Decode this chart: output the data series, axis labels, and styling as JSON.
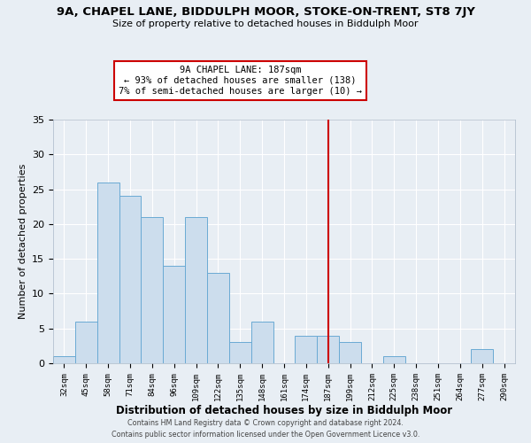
{
  "title": "9A, CHAPEL LANE, BIDDULPH MOOR, STOKE-ON-TRENT, ST8 7JY",
  "subtitle": "Size of property relative to detached houses in Biddulph Moor",
  "xlabel": "Distribution of detached houses by size in Biddulph Moor",
  "ylabel": "Number of detached properties",
  "bin_labels": [
    "32sqm",
    "45sqm",
    "58sqm",
    "71sqm",
    "84sqm",
    "96sqm",
    "109sqm",
    "122sqm",
    "135sqm",
    "148sqm",
    "161sqm",
    "174sqm",
    "187sqm",
    "199sqm",
    "212sqm",
    "225sqm",
    "238sqm",
    "251sqm",
    "264sqm",
    "277sqm",
    "290sqm"
  ],
  "bar_values": [
    1,
    6,
    26,
    24,
    21,
    14,
    21,
    13,
    3,
    6,
    0,
    4,
    4,
    3,
    0,
    1,
    0,
    0,
    0,
    2,
    0
  ],
  "bar_color": "#ccdded",
  "bar_edge_color": "#6aaad4",
  "vline_x_index": 12,
  "vline_color": "#cc0000",
  "annotation_title": "9A CHAPEL LANE: 187sqm",
  "annotation_line1": "← 93% of detached houses are smaller (138)",
  "annotation_line2": "7% of semi-detached houses are larger (10) →",
  "annotation_box_color": "#ffffff",
  "annotation_box_edge": "#cc0000",
  "ylim": [
    0,
    35
  ],
  "yticks": [
    0,
    5,
    10,
    15,
    20,
    25,
    30,
    35
  ],
  "footer1": "Contains HM Land Registry data © Crown copyright and database right 2024.",
  "footer2": "Contains public sector information licensed under the Open Government Licence v3.0.",
  "bg_color": "#e8eef4",
  "grid_color": "#ffffff",
  "spine_color": "#aab8c8"
}
